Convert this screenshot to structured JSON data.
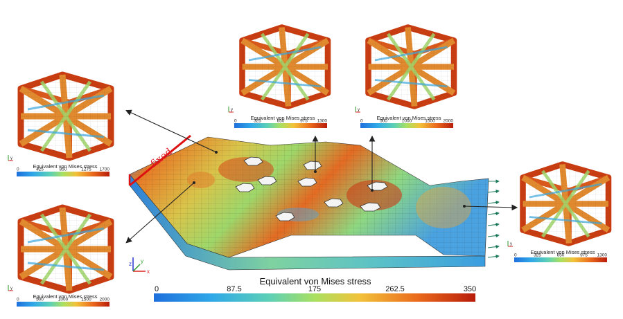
{
  "fixed_label": "fixed",
  "main_colorbar": {
    "title": "Equivalent von Mises stress",
    "ticks": [
      "0",
      "87.5",
      "175",
      "262.5",
      "350"
    ],
    "range": [
      0,
      350
    ]
  },
  "insets": [
    {
      "id": "top-left-lattice",
      "title": "Equivalent von Mises stress",
      "ticks": [
        "0",
        "425",
        "850",
        "1275",
        "1700"
      ]
    },
    {
      "id": "bottom-left-lattice",
      "title": "Equivalent von Mises stress",
      "ticks": [
        "0",
        "500",
        "1000",
        "1500",
        "2000"
      ]
    },
    {
      "id": "top-center-lattice",
      "title": "Equivalent von Mises stress",
      "ticks": [
        "0",
        "325",
        "650",
        "975",
        "1300"
      ]
    },
    {
      "id": "top-right-lattice",
      "title": "Equivalent von Mises stress",
      "ticks": [
        "0",
        "500",
        "1000",
        "1500",
        "2000"
      ]
    },
    {
      "id": "right-lattice",
      "title": "Equivalent von Mises stress",
      "ticks": [
        "0",
        "325",
        "650",
        "975",
        "1300"
      ]
    }
  ],
  "axes_labels": {
    "x": "x",
    "y": "y",
    "z": "z"
  },
  "colors": {
    "low": "#1e6fdc",
    "mid": "#9edc5a",
    "high": "#c81e0a",
    "fixed_edge": "#dd1111",
    "arrow": "#222222",
    "load_arrow": "#1a7a5a"
  }
}
